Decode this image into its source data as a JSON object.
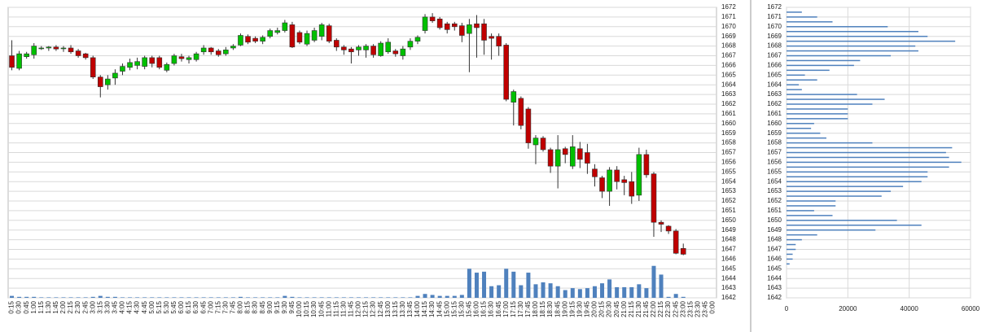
{
  "chart_data": [
    {
      "type": "candlestick",
      "categories": [
        "0:15",
        "0:30",
        "0:45",
        "1:00",
        "1:15",
        "1:30",
        "1:45",
        "2:00",
        "2:15",
        "2:30",
        "2:45",
        "3:00",
        "3:15",
        "3:30",
        "3:45",
        "4:00",
        "4:15",
        "4:30",
        "4:45",
        "5:00",
        "5:15",
        "5:30",
        "5:45",
        "6:00",
        "6:15",
        "6:30",
        "6:45",
        "7:00",
        "7:15",
        "7:30",
        "7:45",
        "8:00",
        "8:15",
        "8:30",
        "8:45",
        "9:00",
        "9:15",
        "9:30",
        "9:45",
        "10:00",
        "10:15",
        "10:30",
        "10:45",
        "11:00",
        "11:15",
        "11:30",
        "11:45",
        "12:00",
        "12:15",
        "12:30",
        "12:45",
        "13:00",
        "13:15",
        "13:30",
        "13:45",
        "14:00",
        "14:15",
        "14:30",
        "14:45",
        "15:00",
        "15:15",
        "15:30",
        "15:45",
        "16:00",
        "16:15",
        "16:30",
        "16:45",
        "17:00",
        "17:15",
        "17:30",
        "17:45",
        "18:00",
        "18:15",
        "18:30",
        "18:45",
        "19:00",
        "19:15",
        "19:30",
        "19:45",
        "20:00",
        "20:15",
        "20:30",
        "20:45",
        "21:00",
        "21:15",
        "21:30",
        "21:45",
        "22:00",
        "22:15",
        "22:30",
        "22:45",
        "23:00",
        "23:15",
        "23:30",
        "23:45",
        "0:00"
      ],
      "open": [
        1667,
        1665.7,
        1666.9,
        1667.1,
        1667.8,
        1667.8,
        1667.9,
        1667.8,
        1667.8,
        1667.5,
        1667.2,
        1666.8,
        1664.8,
        1664,
        1664.7,
        1665.4,
        1665.8,
        1666,
        1665.9,
        1666.8,
        1666.8,
        1665.5,
        1666.2,
        1666.9,
        1666.6,
        1666.6,
        1667.4,
        1667.8,
        1667.5,
        1667.2,
        1667.8,
        1668.1,
        1669,
        1668.8,
        1668.5,
        1669,
        1669.4,
        1669.6,
        1670.2,
        1669.4,
        1668.2,
        1668.6,
        1669,
        1670.1,
        1668.6,
        1667.9,
        1667.7,
        1667.6,
        1667.6,
        1668,
        1667,
        1667.4,
        1667.5,
        1667,
        1667.9,
        1668.5,
        1669.6,
        1671,
        1670.8,
        1670.3,
        1670.3,
        1670.1,
        1669.3,
        1670.3,
        1670.3,
        1669,
        1669,
        1668.1,
        1662.2,
        1662.6,
        1661.5,
        1657.8,
        1658.5,
        1657.3,
        1655.6,
        1657.4,
        1655.6,
        1657.4,
        1657,
        1655.3,
        1654.4,
        1653,
        1655.2,
        1654.2,
        1654,
        1652.6,
        1656.8,
        1654.8,
        1649.8,
        1649.4,
        1648.9,
        1647.1,
        null,
        null,
        null,
        null
      ],
      "high": [
        1668.6,
        1667.5,
        1667.4,
        1668.3,
        1668,
        1668,
        1668.1,
        1668,
        1668.1,
        1667.7,
        1667.3,
        1667,
        1665,
        1665,
        1665.6,
        1666.2,
        1666.7,
        1666.8,
        1667,
        1667,
        1667,
        1666.3,
        1667.2,
        1667.2,
        1667,
        1667.4,
        1668.1,
        1667.9,
        1667.7,
        1667.9,
        1668.2,
        1669.3,
        1669.2,
        1669,
        1669.1,
        1669.8,
        1669.9,
        1670.7,
        1670.5,
        1669.6,
        1669.6,
        1669.9,
        1670.4,
        1670.3,
        1668.8,
        1668.1,
        1667.9,
        1668.1,
        1668.2,
        1668.2,
        1668.5,
        1668.8,
        1667.7,
        1668,
        1668.8,
        1669.1,
        1671.3,
        1671.4,
        1671,
        1670.5,
        1670.5,
        1670.4,
        1670.8,
        1671.2,
        1670.8,
        1669.3,
        1669.3,
        1668.3,
        1663.5,
        1662.8,
        1661.7,
        1658.8,
        1658.7,
        1657.5,
        1658.8,
        1657.6,
        1658.8,
        1658.1,
        1657.9,
        1655.8,
        1654.6,
        1655.5,
        1655.6,
        1654.6,
        1655,
        1657.5,
        1657.3,
        1655,
        1650,
        1649.5,
        1649.1,
        1647.6,
        null,
        null,
        null,
        null
      ],
      "low": [
        1665.5,
        1665.5,
        1666.7,
        1666.7,
        1667.6,
        1667.5,
        1667.5,
        1667.4,
        1667.2,
        1666.8,
        1666.6,
        1664.6,
        1662.7,
        1663.5,
        1664,
        1665,
        1665.5,
        1665.6,
        1665.6,
        1665.8,
        1665.6,
        1665.3,
        1666,
        1666.4,
        1666.2,
        1666.4,
        1667.1,
        1667.1,
        1666.9,
        1667,
        1667.6,
        1668,
        1668.2,
        1668.3,
        1668.2,
        1668.8,
        1669.2,
        1669.4,
        1667.8,
        1668.2,
        1668,
        1668.4,
        1668.6,
        1668.3,
        1667.5,
        1667.1,
        1666.2,
        1667,
        1666.8,
        1666.8,
        1666.9,
        1667.2,
        1666.9,
        1666.6,
        1667.6,
        1668.2,
        1669.3,
        1670.4,
        1669.7,
        1669.3,
        1669.6,
        1668.4,
        1665.3,
        1666.8,
        1667.1,
        1666.6,
        1667,
        1662.3,
        1659.8,
        1659.4,
        1657.4,
        1655.8,
        1657.1,
        1654.9,
        1653.3,
        1655.9,
        1655.3,
        1655.4,
        1654.8,
        1653.5,
        1652.3,
        1651.5,
        1653.2,
        1652.6,
        1651.7,
        1652,
        1654.4,
        1648.3,
        1648.8,
        1648.6,
        1646.5,
        1646.4,
        null,
        null,
        null,
        null
      ],
      "close": [
        1665.8,
        1667.2,
        1667.2,
        1668,
        1667.8,
        1667.9,
        1667.7,
        1667.8,
        1667.4,
        1667,
        1666.8,
        1664.8,
        1663.8,
        1664.6,
        1665.2,
        1665.9,
        1666.3,
        1666.4,
        1666.8,
        1666.2,
        1665.8,
        1666.1,
        1667,
        1666.7,
        1666.8,
        1667.2,
        1667.8,
        1667.4,
        1667.1,
        1667.6,
        1668,
        1669.1,
        1668.4,
        1668.5,
        1668.9,
        1669.6,
        1669.6,
        1670.4,
        1667.9,
        1668.4,
        1669.3,
        1669.6,
        1670.2,
        1668.5,
        1667.9,
        1667.6,
        1667.4,
        1667.9,
        1668,
        1667.1,
        1668.3,
        1668.4,
        1667.2,
        1667.7,
        1668.5,
        1668.9,
        1671,
        1670.6,
        1669.9,
        1669.7,
        1670,
        1669.1,
        1670.2,
        1669.9,
        1668.6,
        1668.8,
        1668,
        1662.5,
        1663.3,
        1659.8,
        1658,
        1658.5,
        1657.3,
        1655.6,
        1657.3,
        1656.8,
        1657.6,
        1656.3,
        1655.9,
        1654.5,
        1653,
        1655.2,
        1654,
        1653.9,
        1652.5,
        1656.8,
        1654.7,
        1649.8,
        1649.6,
        1648.9,
        1646.6,
        1646.5,
        null,
        null,
        null,
        null
      ],
      "up_color": "#00c000",
      "down_color": "#c00000",
      "volume": {
        "color": "#4f81bd",
        "values": [
          1642.2,
          1642.1,
          1642.1,
          1642.1,
          1642.05,
          1642.05,
          1642.05,
          1642.05,
          1642.05,
          1642.05,
          1642.05,
          1642.1,
          1642.2,
          1642.1,
          1642.1,
          1642.05,
          1642.05,
          1642.05,
          1642.05,
          1642.05,
          1642.05,
          1642.05,
          1642.05,
          1642.05,
          1642.05,
          1642.05,
          1642.05,
          1642.05,
          1642.05,
          1642.05,
          1642.05,
          1642.1,
          1642.05,
          1642.05,
          1642.05,
          1642.05,
          1642.05,
          1642.2,
          1642.1,
          1642.05,
          1642.05,
          1642.05,
          1642.05,
          1642.05,
          1642.05,
          1642.05,
          1642.05,
          1642.05,
          1642.05,
          1642.05,
          1642.05,
          1642.05,
          1642.05,
          1642.05,
          1642.05,
          1642.2,
          1642.4,
          1642.3,
          1642.2,
          1642.2,
          1642.2,
          1642.3,
          1645,
          1644.6,
          1644.7,
          1643.2,
          1643.3,
          1645,
          1644.7,
          1643.3,
          1644.6,
          1643.4,
          1643.6,
          1643.5,
          1643.2,
          1642.8,
          1643,
          1642.9,
          1643,
          1643.2,
          1643.5,
          1643.9,
          1643.1,
          1643.1,
          1643.1,
          1643.4,
          1643,
          1645.3,
          1644.4,
          1642.1,
          1642.4,
          1642.1,
          null,
          null,
          null,
          null
        ]
      },
      "ylim": [
        1642,
        1672
      ],
      "yticks": [
        1642,
        1643,
        1644,
        1645,
        1646,
        1647,
        1648,
        1649,
        1650,
        1651,
        1652,
        1653,
        1654,
        1655,
        1656,
        1657,
        1658,
        1659,
        1660,
        1661,
        1662,
        1663,
        1664,
        1665,
        1666,
        1667,
        1668,
        1669,
        1670,
        1671,
        1672
      ],
      "grid": true
    },
    {
      "type": "barh",
      "y": [
        1645.5,
        1646,
        1646.5,
        1647,
        1647.5,
        1648,
        1648.5,
        1649,
        1649.5,
        1650,
        1650.5,
        1651,
        1651.5,
        1652,
        1652.5,
        1653,
        1653.5,
        1654,
        1654.5,
        1655,
        1655.5,
        1656,
        1656.5,
        1657,
        1657.5,
        1658,
        1658.5,
        1659,
        1659.5,
        1660,
        1660.5,
        1661,
        1661.5,
        1662,
        1662.5,
        1663,
        1663.5,
        1664,
        1664.5,
        1665,
        1665.5,
        1666,
        1666.5,
        1667,
        1667.5,
        1668,
        1668.5,
        1669,
        1669.5,
        1670,
        1670.5,
        1671,
        1671.5
      ],
      "values": [
        1000,
        2000,
        2000,
        3000,
        3000,
        5000,
        10000,
        29000,
        44000,
        36000,
        15000,
        9000,
        16000,
        16000,
        31000,
        34000,
        38000,
        44000,
        46000,
        46000,
        53000,
        57000,
        53000,
        52000,
        54000,
        28000,
        13000,
        11000,
        8000,
        9000,
        20000,
        20000,
        20000,
        28000,
        32000,
        23000,
        5000,
        4000,
        10000,
        6000,
        14000,
        22000,
        24000,
        34000,
        43000,
        42000,
        55000,
        46000,
        43000,
        33000,
        15000,
        10000,
        5000
      ],
      "color": "#4f81bd",
      "xlim": [
        0,
        60000
      ],
      "xticks": [
        0,
        20000,
        40000,
        60000
      ],
      "ylim": [
        1642,
        1672
      ],
      "yticks": [
        1642,
        1643,
        1644,
        1645,
        1646,
        1647,
        1648,
        1649,
        1650,
        1651,
        1652,
        1653,
        1654,
        1655,
        1656,
        1657,
        1658,
        1659,
        1660,
        1661,
        1662,
        1663,
        1664,
        1665,
        1666,
        1667,
        1668,
        1669,
        1670,
        1671,
        1672
      ],
      "grid": true
    }
  ]
}
